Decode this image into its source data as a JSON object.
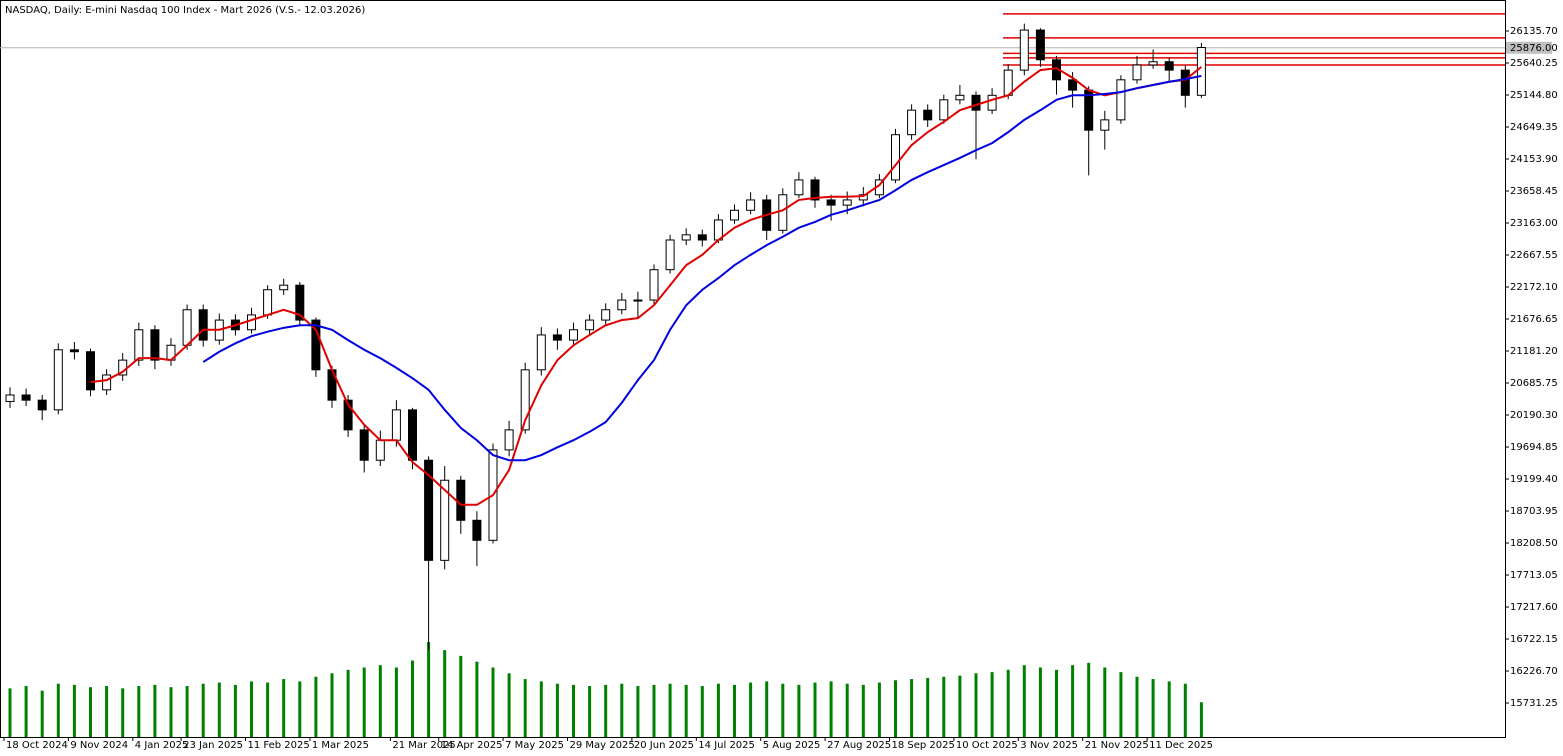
{
  "chart_data": {
    "type": "candlestick",
    "title": "NASDAQ, Daily:  E-mini Nasdaq 100 Index - Mart 2026 (V.S.- 12.03.2026)",
    "up_color": "#ffffff",
    "down_color": "#000000",
    "volume_color": "#008000",
    "open": [
      20400,
      20500,
      20420,
      20270,
      21200,
      21170,
      20580,
      20810,
      21040,
      21510,
      21040,
      21270,
      21820,
      21350,
      21660,
      21510,
      21740,
      22130,
      22200,
      21660,
      20890,
      20420,
      19960,
      19490,
      19800,
      20270,
      19490,
      17940,
      19180,
      18560,
      18250,
      19650,
      19960,
      20890,
      21430,
      21350,
      21510,
      21660,
      21820,
      21970,
      21970,
      22440,
      22900,
      22980,
      22900,
      23210,
      23360,
      23520,
      23050,
      23600,
      23830,
      23520,
      23440,
      23520,
      23600,
      23830,
      24530,
      24910,
      24760,
      25070,
      25140,
      24910,
      25140,
      25530,
      26150,
      25690,
      25380,
      25220,
      24600,
      24760,
      25380,
      25610,
      25660,
      25530,
      25140
    ],
    "high": [
      20620,
      20600,
      20500,
      21300,
      21320,
      21220,
      20900,
      21150,
      21620,
      21580,
      21380,
      21900,
      21900,
      21760,
      21750,
      21850,
      22200,
      22300,
      22250,
      21700,
      20950,
      20500,
      20050,
      19950,
      20420,
      20300,
      19550,
      19400,
      19250,
      18700,
      19750,
      20100,
      21000,
      21550,
      21530,
      21620,
      21750,
      21920,
      22080,
      22100,
      22520,
      22980,
      23080,
      23060,
      23300,
      23450,
      23640,
      23600,
      23700,
      23950,
      23880,
      23600,
      23650,
      23720,
      23920,
      24620,
      25000,
      25000,
      25150,
      25300,
      25200,
      25250,
      25620,
      26250,
      26180,
      25750,
      25500,
      25280,
      24900,
      25450,
      25750,
      25850,
      25720,
      25600,
      25950
    ],
    "low": [
      20300,
      20330,
      20110,
      20200,
      21050,
      20480,
      20500,
      20720,
      20950,
      20900,
      20950,
      21200,
      21250,
      21280,
      21420,
      21450,
      21680,
      22050,
      21560,
      20780,
      20300,
      19850,
      19300,
      19400,
      19700,
      19350,
      16550,
      17800,
      18350,
      17850,
      18200,
      19550,
      19900,
      20800,
      21200,
      21250,
      21420,
      21580,
      21750,
      21700,
      21900,
      22380,
      22820,
      22800,
      22850,
      23150,
      23300,
      22900,
      23000,
      23550,
      23400,
      23200,
      23300,
      23420,
      23550,
      23780,
      24450,
      24650,
      24700,
      25000,
      24150,
      24850,
      25080,
      25450,
      25580,
      25150,
      24950,
      23900,
      24300,
      24700,
      25320,
      25550,
      25350,
      24950,
      25100
    ],
    "close": [
      20500,
      20420,
      20270,
      21200,
      21170,
      20580,
      20810,
      21040,
      21510,
      21040,
      21270,
      21820,
      21350,
      21660,
      21510,
      21740,
      22130,
      22200,
      21660,
      20890,
      20420,
      19960,
      19490,
      19800,
      20270,
      19490,
      17940,
      19180,
      18560,
      18250,
      19650,
      19960,
      20890,
      21430,
      21350,
      21510,
      21660,
      21820,
      21970,
      21970,
      22440,
      22900,
      22980,
      22900,
      23210,
      23360,
      23520,
      23050,
      23600,
      23830,
      23520,
      23440,
      23520,
      23600,
      23830,
      24530,
      24910,
      24760,
      25070,
      25140,
      24910,
      25140,
      25530,
      26150,
      25690,
      25380,
      25220,
      24600,
      24760,
      25380,
      25610,
      25660,
      25530,
      25140,
      25880
    ],
    "volume": [
      42,
      44,
      40,
      46,
      45,
      43,
      44,
      42,
      44,
      45,
      43,
      44,
      46,
      47,
      45,
      48,
      47,
      50,
      48,
      52,
      55,
      58,
      60,
      62,
      60,
      66,
      82,
      75,
      70,
      65,
      60,
      55,
      50,
      48,
      46,
      45,
      44,
      45,
      46,
      44,
      45,
      46,
      45,
      44,
      46,
      45,
      47,
      48,
      46,
      45,
      47,
      48,
      46,
      45,
      47,
      49,
      50,
      51,
      52,
      53,
      55,
      56,
      58,
      62,
      60,
      58,
      62,
      64,
      60,
      56,
      52,
      50,
      48,
      46,
      30
    ],
    "series": [
      {
        "color": "#e00000",
        "values": [
          null,
          null,
          null,
          null,
          null,
          20700,
          20730,
          20860,
          21070,
          21070,
          21040,
          21270,
          21510,
          21510,
          21580,
          21660,
          21740,
          21820,
          21740,
          21510,
          20890,
          20350,
          20040,
          19800,
          19800,
          19460,
          19260,
          19030,
          18800,
          18800,
          18950,
          19340,
          20110,
          20650,
          21040,
          21270,
          21430,
          21580,
          21660,
          21690,
          21890,
          22200,
          22510,
          22670,
          22900,
          23090,
          23210,
          23290,
          23360,
          23520,
          23550,
          23570,
          23570,
          23580,
          23750,
          24060,
          24370,
          24570,
          24730,
          24910,
          24990,
          25070,
          25140,
          25350,
          25530,
          25560,
          25410,
          25220,
          25140,
          25190,
          25250,
          25300,
          25350,
          25380,
          25580
        ]
      },
      {
        "color": "#0000e0",
        "values": [
          null,
          null,
          null,
          null,
          null,
          null,
          null,
          null,
          null,
          null,
          null,
          null,
          21010,
          21170,
          21300,
          21410,
          21480,
          21540,
          21580,
          21580,
          21510,
          21350,
          21200,
          21070,
          20920,
          20760,
          20580,
          20270,
          19990,
          19800,
          19570,
          19490,
          19490,
          19570,
          19690,
          19800,
          19930,
          20080,
          20380,
          20730,
          21040,
          21510,
          21890,
          22130,
          22310,
          22510,
          22670,
          22820,
          22950,
          23090,
          23180,
          23290,
          23360,
          23440,
          23520,
          23670,
          23830,
          23950,
          24060,
          24170,
          24290,
          24400,
          24570,
          24760,
          24910,
          25070,
          25140,
          25140,
          25160,
          25190,
          25250,
          25300,
          25350,
          25390,
          25440
        ]
      }
    ],
    "levels": [
      26400,
      26030,
      25790,
      25720,
      25610
    ],
    "level_color": "#e00000",
    "current_price": {
      "value": 25876,
      "label": "25876.00"
    },
    "ylim": [
      15204.8,
      26615.7
    ],
    "yticks": [
      {
        "value": 26135.7,
        "label": "26135.70"
      },
      {
        "value": 25640.25,
        "label": "25640.25"
      },
      {
        "value": 25144.8,
        "label": "25144.80"
      },
      {
        "value": 24649.35,
        "label": "24649.35"
      },
      {
        "value": 24153.9,
        "label": "24153.90"
      },
      {
        "value": 23658.45,
        "label": "23658.45"
      },
      {
        "value": 23163,
        "label": "23163.00"
      },
      {
        "value": 22667.55,
        "label": "22667.55"
      },
      {
        "value": 22172.1,
        "label": "22172.10"
      },
      {
        "value": 21676.65,
        "label": "21676.65"
      },
      {
        "value": 21181.2,
        "label": "21181.20"
      },
      {
        "value": 20685.75,
        "label": "20685.75"
      },
      {
        "value": 20190.3,
        "label": "20190.30"
      },
      {
        "value": 19694.85,
        "label": "19694.85"
      },
      {
        "value": 19199.4,
        "label": "19199.40"
      },
      {
        "value": 18703.95,
        "label": "18703.95"
      },
      {
        "value": 18208.5,
        "label": "18208.50"
      },
      {
        "value": 17713.05,
        "label": "17713.05"
      },
      {
        "value": 17217.6,
        "label": "17217.60"
      },
      {
        "value": 16722.15,
        "label": "16722.15"
      },
      {
        "value": 16226.7,
        "label": "16226.70"
      },
      {
        "value": 15731.25,
        "label": "15731.25"
      }
    ],
    "xticks": [
      {
        "value": 0,
        "label": "18 Oct 2024"
      },
      {
        "value": 4,
        "label": "9 Nov 2024"
      },
      {
        "value": 8,
        "label": "4 Jan 2025"
      },
      {
        "value": 11,
        "label": "23 Jan 2025"
      },
      {
        "value": 15,
        "label": "11 Feb 2025"
      },
      {
        "value": 19,
        "label": "1 Mar 2025"
      },
      {
        "value": 24,
        "label": "21 Mar 2025"
      },
      {
        "value": 27,
        "label": "14 Apr 2025"
      },
      {
        "value": 31,
        "label": "7 May 2025"
      },
      {
        "value": 35,
        "label": "29 May 2025"
      },
      {
        "value": 39,
        "label": "20 Jun 2025"
      },
      {
        "value": 43,
        "label": "14 Jul 2025"
      },
      {
        "value": 47,
        "label": "5 Aug 2025"
      },
      {
        "value": 51,
        "label": "27 Aug 2025"
      },
      {
        "value": 55,
        "label": "18 Sep 2025"
      },
      {
        "value": 59,
        "label": "10 Oct 2025"
      },
      {
        "value": 63,
        "label": "3 Nov 2025"
      },
      {
        "value": 67,
        "label": "21 Nov 2025"
      },
      {
        "value": 71,
        "label": "11 Dec 2025"
      }
    ]
  }
}
